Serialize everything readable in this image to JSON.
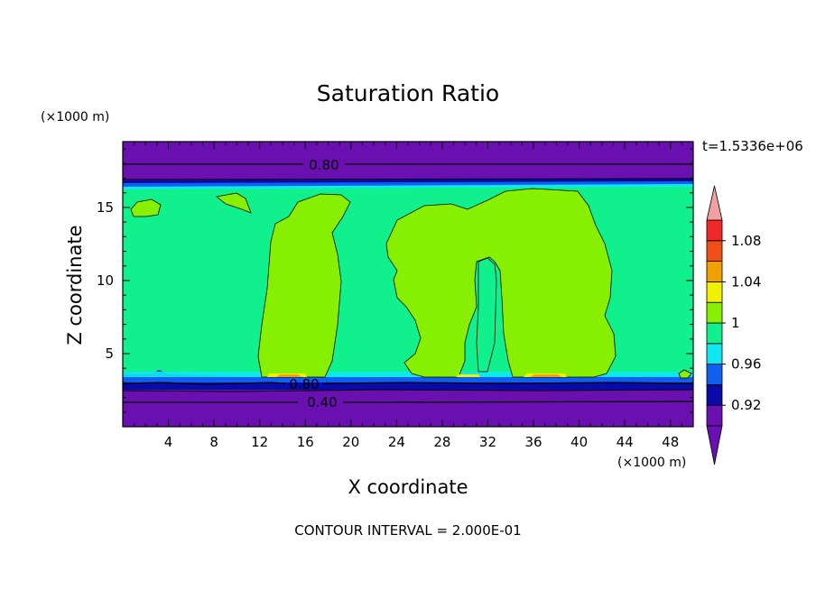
{
  "chart_data": {
    "type": "contour",
    "title": "Saturation Ratio",
    "xlabel": "X coordinate",
    "ylabel": "Z coordinate",
    "x_unit": "(×1000 m)",
    "y_unit": "(×1000 m)",
    "time_label": "t=1.5336e+06",
    "footer": "CONTOUR INTERVAL = 2.000E-01",
    "xlim": [
      0,
      50
    ],
    "ylim": [
      0,
      19.5
    ],
    "x_ticks": [
      4,
      8,
      12,
      16,
      20,
      24,
      28,
      32,
      36,
      40,
      44,
      48
    ],
    "y_ticks": [
      5,
      10,
      15
    ],
    "colorbar_labels": [
      "1.08",
      "1.04",
      "1",
      "0.96",
      "0.92"
    ],
    "colorbar_levels": [
      0.9,
      0.92,
      0.94,
      0.96,
      0.98,
      1.0,
      1.02,
      1.04,
      1.06,
      1.08,
      1.1
    ],
    "contour_line_labels": [
      "0.80",
      "0.80",
      "0.40"
    ],
    "colors": {
      "below_092": "#6a0fb0",
      "c092_094": "#0a0aa8",
      "c094_096": "#1060f0",
      "c096_098": "#10e8f0",
      "c098_100": "#10f08c",
      "c100_102": "#86f000",
      "c102_104": "#f0f000",
      "c104_106": "#f0a000",
      "c106_108": "#f05018",
      "c108_110": "#f02828",
      "above_110": "#f0a0a0"
    }
  }
}
